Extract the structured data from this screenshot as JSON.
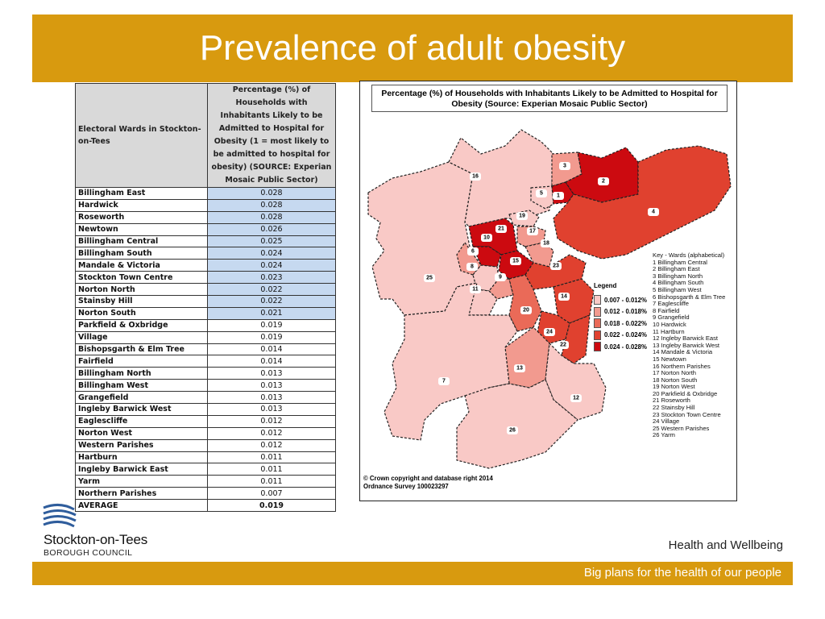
{
  "title": "Prevalence of adult obesity",
  "table": {
    "header_col1": "Electoral Wards in Stockton-on-Tees",
    "header_col2": "Percentage (%) of Households with Inhabitants Likely to be Admitted to Hospital for Obesity (1 = most likely to be admitted to hospital for obesity) (SOURCE: Experian Mosaic Public Sector)",
    "rows": [
      {
        "ward": "Billingham East",
        "value": "0.028"
      },
      {
        "ward": "Hardwick",
        "value": "0.028"
      },
      {
        "ward": "Roseworth",
        "value": "0.028"
      },
      {
        "ward": "Newtown",
        "value": "0.026"
      },
      {
        "ward": "Billingham Central",
        "value": "0.025"
      },
      {
        "ward": "Billingham South",
        "value": "0.024"
      },
      {
        "ward": "Mandale & Victoria",
        "value": "0.024"
      },
      {
        "ward": "Stockton Town Centre",
        "value": "0.023"
      },
      {
        "ward": "Norton North",
        "value": "0.022"
      },
      {
        "ward": "Stainsby Hill",
        "value": "0.022"
      },
      {
        "ward": "Norton South",
        "value": "0.021"
      },
      {
        "ward": "Parkfield & Oxbridge",
        "value": "0.019"
      },
      {
        "ward": "Village",
        "value": "0.019"
      },
      {
        "ward": "Bishopsgarth & Elm Tree",
        "value": "0.014"
      },
      {
        "ward": "Fairfield",
        "value": "0.014"
      },
      {
        "ward": "Billingham North",
        "value": "0.013"
      },
      {
        "ward": "Billingham West",
        "value": "0.013"
      },
      {
        "ward": "Grangefield",
        "value": "0.013"
      },
      {
        "ward": "Ingleby Barwick West",
        "value": "0.013"
      },
      {
        "ward": "Eaglescliffe",
        "value": "0.012"
      },
      {
        "ward": "Norton West",
        "value": "0.012"
      },
      {
        "ward": "Western Parishes",
        "value": "0.012"
      },
      {
        "ward": "Hartburn",
        "value": "0.011"
      },
      {
        "ward": "Ingleby Barwick East",
        "value": "0.011"
      },
      {
        "ward": "Yarm",
        "value": "0.011"
      },
      {
        "ward": "Northern Parishes",
        "value": "0.007"
      }
    ],
    "highlighted_count": 11,
    "average_label": "AVERAGE",
    "average_value": "0.019"
  },
  "map": {
    "title": "Percentage (%) of Households with Inhabitants Likely to be Admitted to Hospital for Obesity (Source: Experian Mosaic Public Sector)",
    "legend_title": "Legend",
    "legend": [
      {
        "label": "0.007 - 0.012%",
        "color": "#f9c9c6"
      },
      {
        "label": "0.012 - 0.018%",
        "color": "#f29a8f"
      },
      {
        "label": "0.018 - 0.022%",
        "color": "#ea6a58"
      },
      {
        "label": "0.022 - 0.024%",
        "color": "#e0412f"
      },
      {
        "label": "0.024 - 0.028%",
        "color": "#cc0a10"
      }
    ],
    "key_title": "Key - Wards (alphabetical)",
    "key": [
      "1 Billingham Central",
      "2 Billingham East",
      "3 Billingham North",
      "4 Billingham South",
      "5 Billingham West",
      "6 Bishopsgarth & Elm Tree",
      "7 Eaglescliffe",
      "8 Fairfield",
      "9 Grangefield",
      "10 Hardwick",
      "11 Hartburn",
      "12 Ingleby Barwick East",
      "13 Ingleby Barwick West",
      "14 Mandale & Victoria",
      "15 Newtown",
      "16 Northern Parishes",
      "17 Norton North",
      "18 Norton South",
      "19 Norton West",
      "20 Parkfield & Oxbridge",
      "21 Roseworth",
      "22 Stainsby Hill",
      "23 Stockton Town Centre",
      "24 Village",
      "25 Western Parishes",
      "26 Yarm"
    ],
    "copyright_line1": "© Crown copyright and database right 2014",
    "copyright_line2": "Ordnance Survey 100023297"
  },
  "logo": {
    "line1": "Stockton-on-Tees",
    "line2": "BOROUGH COUNCIL"
  },
  "tagline": "Health and Wellbeing",
  "footer": "Big plans for the health of our people"
}
